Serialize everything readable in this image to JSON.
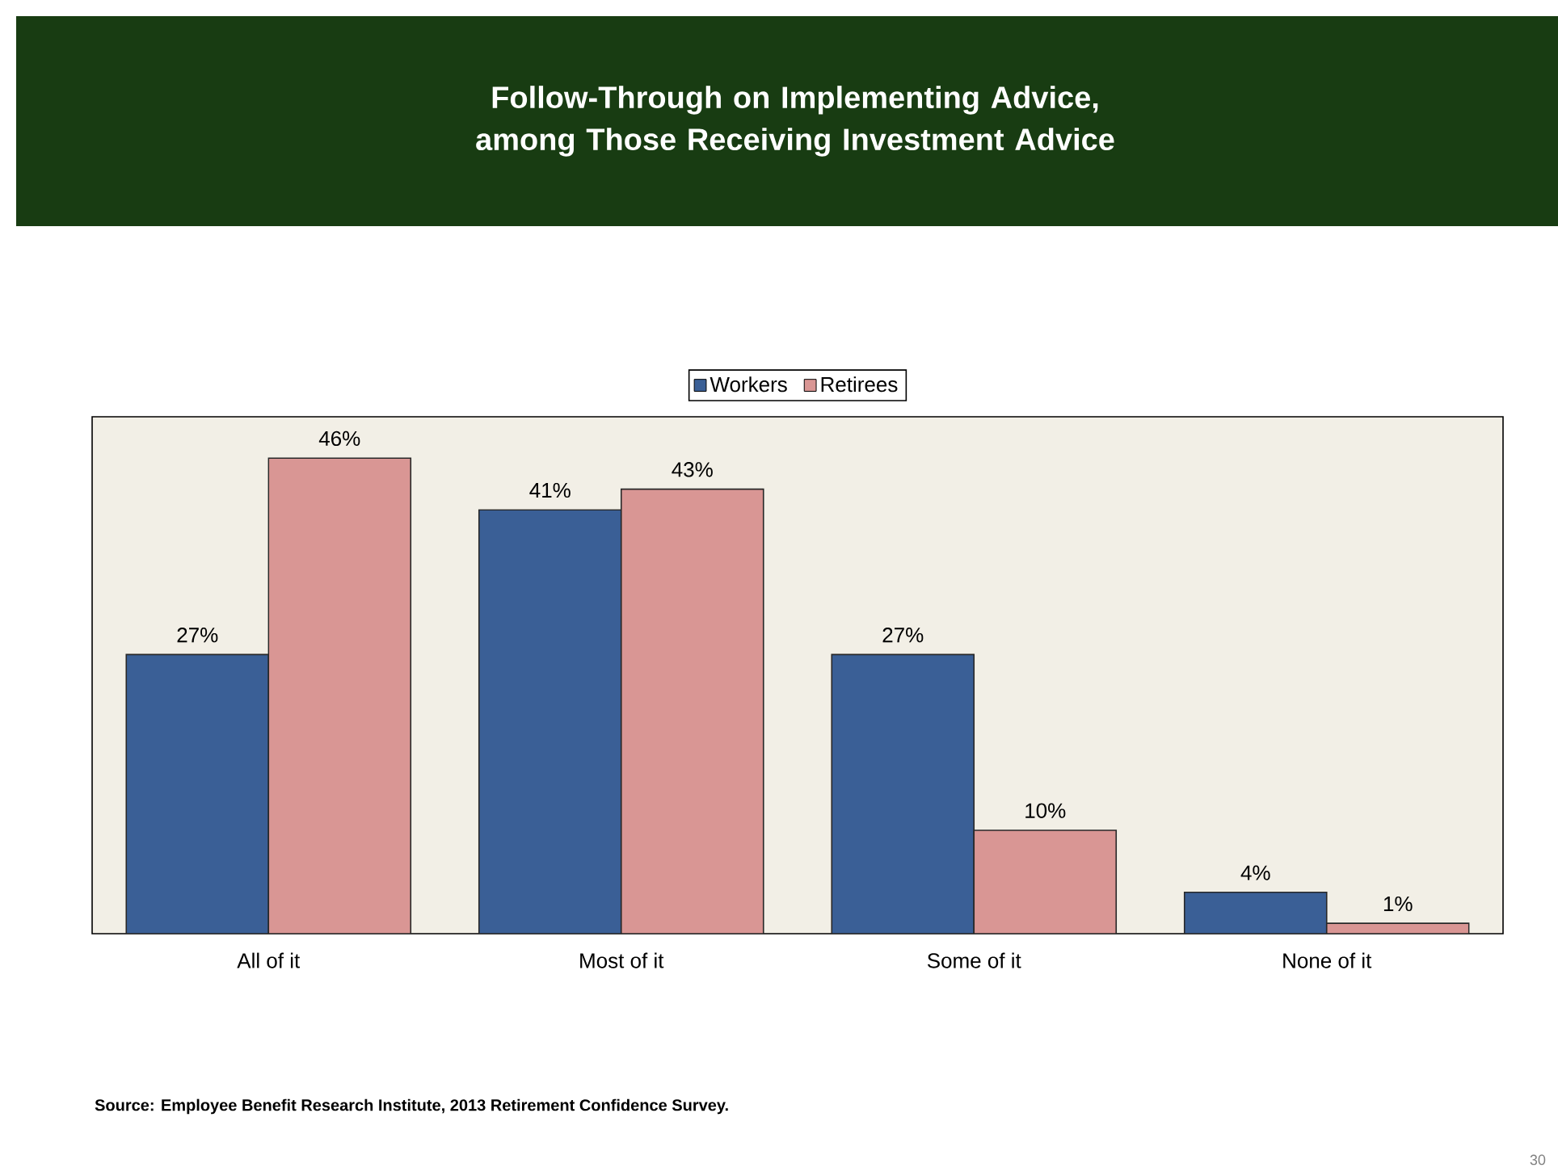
{
  "chart_data": {
    "type": "bar",
    "title": "Follow-Through on Implementing Advice, among Those Receiving Investment Advice",
    "categories": [
      "All of it",
      "Most of it",
      "Some of it",
      "None of it"
    ],
    "series": [
      {
        "name": "Workers",
        "color": "#3a5f96",
        "values": [
          27,
          41,
          27,
          4
        ],
        "value_labels": [
          "27%",
          "41%",
          "27%",
          "4%"
        ]
      },
      {
        "name": "Retirees",
        "color": "#d99694",
        "values": [
          46,
          43,
          10,
          1
        ],
        "value_labels": [
          "46%",
          "43%",
          "10%",
          "1%"
        ]
      }
    ],
    "ylim": [
      0,
      50
    ],
    "tick_labels": "x",
    "legend": "top",
    "annotations": [
      "Source: Employee Benefit Research Institute, 2013 Retirement Confidence Survey.",
      "30"
    ]
  }
}
